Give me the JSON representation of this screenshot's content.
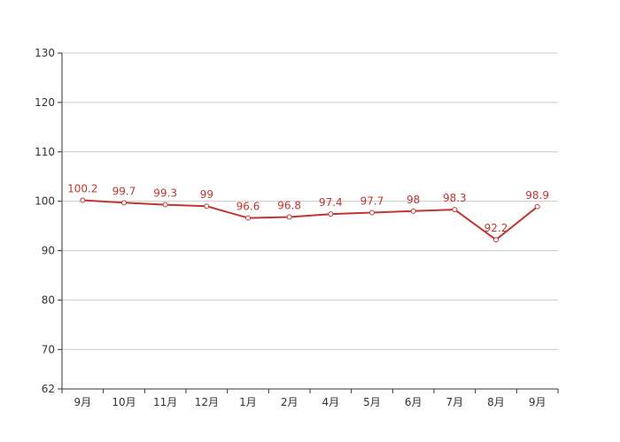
{
  "chart_data": {
    "type": "line",
    "categories": [
      "9月",
      "10月",
      "11月",
      "12月",
      "1月",
      "2月",
      "4月",
      "5月",
      "6月",
      "7月",
      "8月",
      "9月"
    ],
    "series": [
      {
        "values": [
          100.2,
          99.7,
          99.3,
          99,
          96.6,
          96.8,
          97.4,
          97.7,
          98,
          98.3,
          92.2,
          98.9
        ]
      }
    ],
    "data_labels": [
      "100.2",
      "99.7",
      "99.3",
      "99",
      "96.6",
      "96.8",
      "97.4",
      "97.7",
      "98",
      "98.3",
      "92.2",
      "98.9"
    ],
    "y_ticks": [
      62,
      70,
      80,
      90,
      100,
      110,
      120,
      130
    ],
    "y_tick_labels": [
      "62",
      "70",
      "80",
      "90",
      "100",
      "110",
      "120",
      "130"
    ],
    "ylim": [
      62,
      130
    ],
    "grid": true,
    "legend": "none",
    "colors": {
      "line": "#c23531",
      "grid": "#cccccc",
      "axis": "#333333",
      "marker_fill": "#ffffff"
    }
  }
}
